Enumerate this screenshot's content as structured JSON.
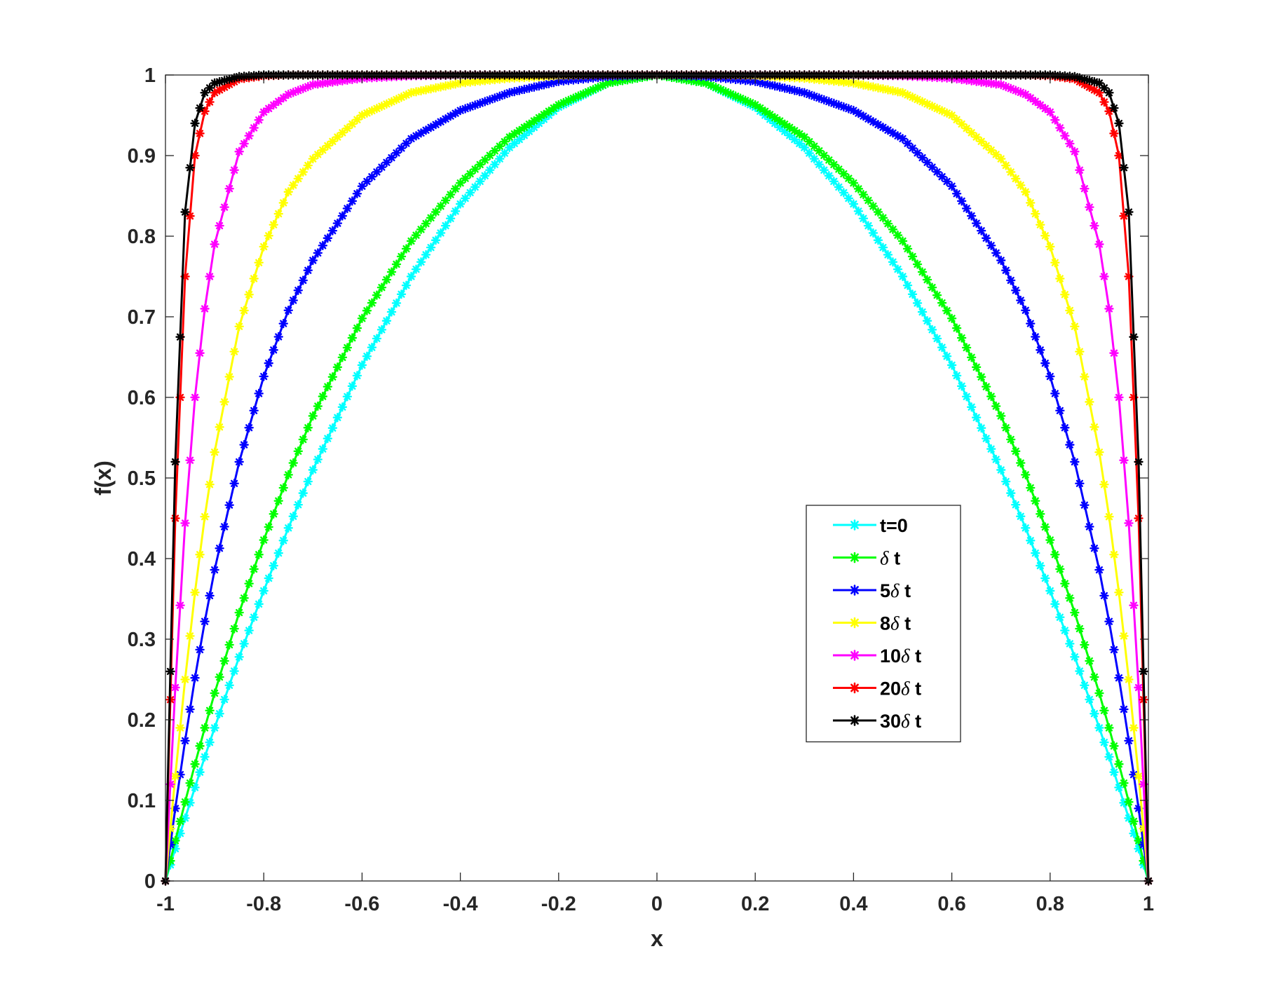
{
  "chart_data": {
    "type": "line",
    "title": "",
    "xlabel": "x",
    "ylabel": "f(x)",
    "xlim": [
      -1,
      1
    ],
    "ylim": [
      0,
      1
    ],
    "xticks": [
      -1,
      -0.8,
      -0.6,
      -0.4,
      -0.2,
      0,
      0.2,
      0.4,
      0.6,
      0.8,
      1
    ],
    "xtick_labels": [
      "-1",
      "-0.8",
      "-0.6",
      "-0.4",
      "-0.2",
      "0",
      "0.2",
      "0.4",
      "0.6",
      "0.8",
      "1"
    ],
    "yticks": [
      0,
      0.1,
      0.2,
      0.3,
      0.4,
      0.5,
      0.6,
      0.7,
      0.8,
      0.9,
      1
    ],
    "ytick_labels": [
      "0",
      "0.1",
      "0.2",
      "0.3",
      "0.4",
      "0.5",
      "0.6",
      "0.7",
      "0.8",
      "0.9",
      "1"
    ],
    "grid": false,
    "box": true,
    "marker": "asterisk",
    "legend_position": "lower-right",
    "x": [
      -1.0,
      -0.98,
      -0.96,
      -0.94,
      -0.92,
      -0.9,
      -0.85,
      -0.8,
      -0.75,
      -0.7,
      -0.6,
      -0.5,
      -0.4,
      -0.3,
      -0.2,
      -0.1,
      0.0,
      0.1,
      0.2,
      0.3,
      0.4,
      0.5,
      0.6,
      0.7,
      0.75,
      0.8,
      0.85,
      0.9,
      0.92,
      0.94,
      0.96,
      0.98,
      1.0
    ],
    "series": [
      {
        "name": "t=0",
        "color": "#00ffff",
        "values": [
          0.0,
          0.04,
          0.078,
          0.116,
          0.154,
          0.19,
          0.278,
          0.36,
          0.438,
          0.51,
          0.64,
          0.75,
          0.84,
          0.91,
          0.96,
          0.99,
          1.0,
          0.99,
          0.96,
          0.91,
          0.84,
          0.75,
          0.64,
          0.51,
          0.438,
          0.36,
          0.278,
          0.19,
          0.154,
          0.116,
          0.078,
          0.04,
          0.0
        ]
      },
      {
        "name": "δ t",
        "color": "#00ff00",
        "values": [
          0.0,
          0.05,
          0.098,
          0.145,
          0.19,
          0.233,
          0.333,
          0.423,
          0.504,
          0.577,
          0.698,
          0.794,
          0.866,
          0.923,
          0.963,
          0.99,
          1.0,
          0.99,
          0.963,
          0.923,
          0.866,
          0.794,
          0.698,
          0.577,
          0.504,
          0.423,
          0.333,
          0.233,
          0.19,
          0.145,
          0.098,
          0.05,
          0.0
        ]
      },
      {
        "name": "5δ t",
        "color": "#0000ff",
        "values": [
          0.0,
          0.09,
          0.174,
          0.252,
          0.322,
          0.386,
          0.52,
          0.626,
          0.708,
          0.77,
          0.862,
          0.921,
          0.956,
          0.978,
          0.992,
          0.998,
          1.0,
          0.998,
          0.992,
          0.978,
          0.956,
          0.921,
          0.862,
          0.77,
          0.708,
          0.626,
          0.52,
          0.386,
          0.322,
          0.252,
          0.174,
          0.09,
          0.0
        ]
      },
      {
        "name": "8δ t",
        "color": "#ffff00",
        "values": [
          0.0,
          0.13,
          0.25,
          0.358,
          0.452,
          0.532,
          0.688,
          0.787,
          0.855,
          0.896,
          0.95,
          0.978,
          0.99,
          0.996,
          0.999,
          1.0,
          1.0,
          1.0,
          0.999,
          0.996,
          0.99,
          0.978,
          0.95,
          0.896,
          0.855,
          0.787,
          0.688,
          0.532,
          0.452,
          0.358,
          0.25,
          0.13,
          0.0
        ]
      },
      {
        "name": "10δ t",
        "color": "#ff00ff",
        "values": [
          0.0,
          0.24,
          0.444,
          0.6,
          0.71,
          0.79,
          0.905,
          0.954,
          0.976,
          0.988,
          0.996,
          0.999,
          1.0,
          1.0,
          1.0,
          1.0,
          1.0,
          1.0,
          1.0,
          1.0,
          1.0,
          0.999,
          0.996,
          0.988,
          0.976,
          0.954,
          0.905,
          0.79,
          0.71,
          0.6,
          0.444,
          0.24,
          0.0
        ]
      },
      {
        "name": "20δ t",
        "color": "#ff0000",
        "values": [
          0.0,
          0.45,
          0.75,
          0.9,
          0.955,
          0.978,
          0.995,
          0.999,
          1.0,
          1.0,
          1.0,
          1.0,
          1.0,
          1.0,
          1.0,
          1.0,
          1.0,
          1.0,
          1.0,
          1.0,
          1.0,
          1.0,
          1.0,
          1.0,
          1.0,
          0.999,
          0.995,
          0.978,
          0.955,
          0.9,
          0.75,
          0.45,
          0.0
        ]
      },
      {
        "name": "30δ t",
        "color": "#000000",
        "values": [
          0.0,
          0.52,
          0.83,
          0.94,
          0.978,
          0.99,
          0.998,
          1.0,
          1.0,
          1.0,
          1.0,
          1.0,
          1.0,
          1.0,
          1.0,
          1.0,
          1.0,
          1.0,
          1.0,
          1.0,
          1.0,
          1.0,
          1.0,
          1.0,
          1.0,
          1.0,
          0.998,
          0.99,
          0.978,
          0.94,
          0.83,
          0.52,
          0.0
        ]
      }
    ]
  }
}
